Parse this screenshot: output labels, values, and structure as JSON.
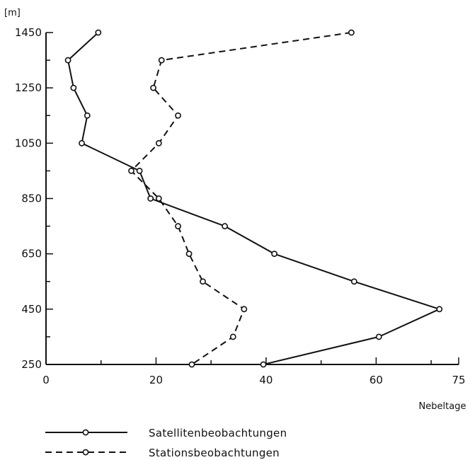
{
  "chart_data": {
    "type": "line",
    "xlabel": "Nebeltage",
    "ylabel": "[m]",
    "xlim": [
      0,
      75
    ],
    "ylim": [
      250,
      1450
    ],
    "xticks": [
      0,
      20,
      40,
      60,
      75
    ],
    "yticks": [
      250,
      450,
      650,
      850,
      1050,
      1250,
      1450
    ],
    "grid": false,
    "legend_position": "bottom",
    "series": [
      {
        "name": "Satellitenbeobachtungen",
        "style": "solid",
        "color": "#111111",
        "points": [
          {
            "x": 9.5,
            "y": 1450
          },
          {
            "x": 4.0,
            "y": 1350
          },
          {
            "x": 5.0,
            "y": 1250
          },
          {
            "x": 7.5,
            "y": 1150
          },
          {
            "x": 6.5,
            "y": 1050
          },
          {
            "x": 17.0,
            "y": 950
          },
          {
            "x": 19.0,
            "y": 850
          },
          {
            "x": 32.5,
            "y": 750
          },
          {
            "x": 41.5,
            "y": 650
          },
          {
            "x": 56.0,
            "y": 550
          },
          {
            "x": 71.5,
            "y": 450
          },
          {
            "x": 60.5,
            "y": 350
          },
          {
            "x": 39.5,
            "y": 250
          }
        ]
      },
      {
        "name": "Stationsbeobachtungen",
        "style": "dashed",
        "color": "#111111",
        "points": [
          {
            "x": 55.5,
            "y": 1450
          },
          {
            "x": 21.0,
            "y": 1350
          },
          {
            "x": 19.5,
            "y": 1250
          },
          {
            "x": 24.0,
            "y": 1150
          },
          {
            "x": 20.5,
            "y": 1050
          },
          {
            "x": 15.5,
            "y": 950
          },
          {
            "x": 20.5,
            "y": 850
          },
          {
            "x": 24.0,
            "y": 750
          },
          {
            "x": 26.0,
            "y": 650
          },
          {
            "x": 28.5,
            "y": 550
          },
          {
            "x": 36.0,
            "y": 450
          },
          {
            "x": 34.0,
            "y": 350
          },
          {
            "x": 26.5,
            "y": 250
          }
        ]
      }
    ]
  }
}
